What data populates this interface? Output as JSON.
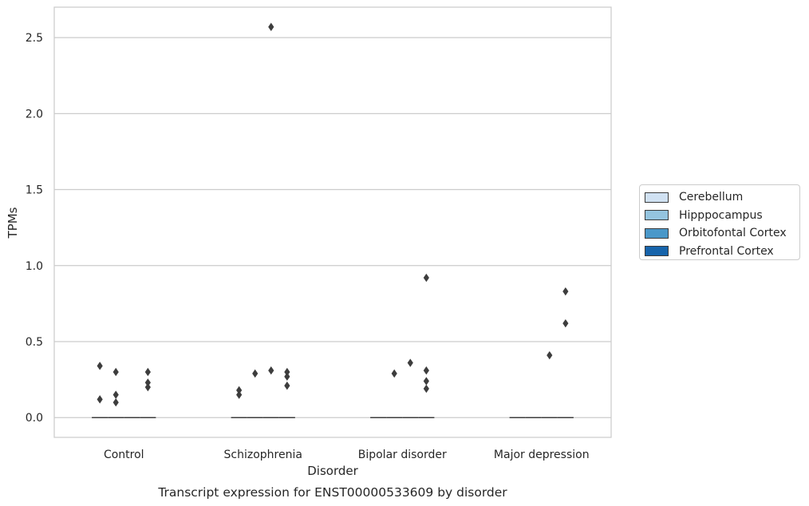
{
  "chart_data": {
    "type": "box",
    "title": "",
    "caption": "Transcript expression for ENST00000533609 by disorder",
    "xlabel": "Disorder",
    "ylabel": "TPMs",
    "ylim": [
      -0.13,
      2.7
    ],
    "yticks": [
      0.0,
      0.5,
      1.0,
      1.5,
      2.0,
      2.5
    ],
    "ytick_labels": [
      "0.0",
      "0.5",
      "1.0",
      "1.5",
      "2.0",
      "2.5"
    ],
    "grid": "horizontal",
    "categories": [
      "Control",
      "Schizophrenia",
      "Bipolar disorder",
      "Major depression"
    ],
    "legend_position": "right",
    "series": [
      {
        "name": "Cerebellum",
        "color": "#d0e1f2",
        "median": [
          0,
          0,
          0,
          0
        ],
        "outliers": [
          [
            0.34,
            0.12
          ],
          [
            0.18,
            0.15
          ],
          [],
          []
        ]
      },
      {
        "name": "Hipppocampus",
        "color": "#94c4df",
        "median": [
          0,
          0,
          0,
          0
        ],
        "outliers": [
          [
            0.3,
            0.15,
            0.1
          ],
          [
            0.29
          ],
          [
            0.29
          ],
          []
        ]
      },
      {
        "name": "Orbitofontal Cortex",
        "color": "#4a98c9",
        "median": [
          0,
          0,
          0,
          0
        ],
        "outliers": [
          [],
          [
            2.57,
            0.31
          ],
          [
            0.36
          ],
          [
            0.41
          ]
        ]
      },
      {
        "name": "Prefrontal Cortex",
        "color": "#1764ab",
        "median": [
          0,
          0,
          0,
          0
        ],
        "outliers": [
          [
            0.3,
            0.23,
            0.2
          ],
          [
            0.3,
            0.27,
            0.21
          ],
          [
            0.92,
            0.31,
            0.24,
            0.19
          ],
          [
            0.83,
            0.62
          ]
        ]
      }
    ]
  }
}
